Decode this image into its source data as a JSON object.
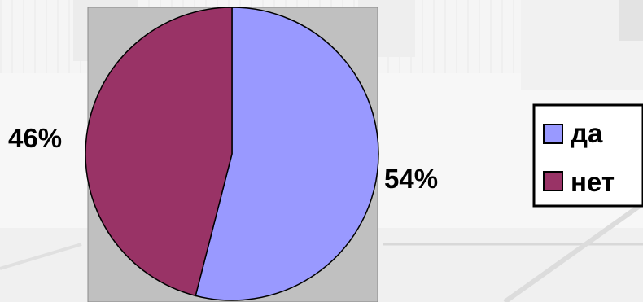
{
  "chart_data": {
    "type": "pie",
    "categories": [
      "да",
      "нет"
    ],
    "values": [
      54,
      46
    ],
    "data_labels": [
      "54%",
      "46%"
    ],
    "colors": [
      "#9999ff",
      "#993366"
    ],
    "plot_area_color": "#c0c0c0",
    "legend_position": "right"
  }
}
